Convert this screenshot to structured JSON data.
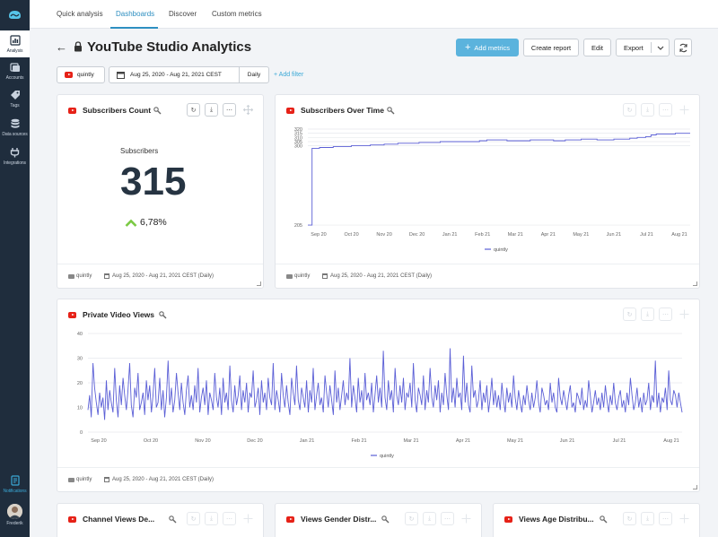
{
  "sidebar": {
    "items": [
      {
        "label": "Analysis",
        "icon": "chart-icon"
      },
      {
        "label": "Accounts",
        "icon": "accounts-icon"
      },
      {
        "label": "Tags",
        "icon": "tag-icon"
      },
      {
        "label": "Data sources",
        "icon": "database-icon"
      },
      {
        "label": "Integrations",
        "icon": "plug-icon"
      }
    ],
    "notifications": "Notifications",
    "user": "Frederik"
  },
  "nav": {
    "tabs": [
      "Quick analysis",
      "Dashboards",
      "Discover",
      "Custom metrics"
    ],
    "active": "Dashboards"
  },
  "header": {
    "title": "YouTube Studio Analytics",
    "add_metrics": "Add metrics",
    "create_report": "Create report",
    "edit": "Edit",
    "export": "Export"
  },
  "filters": {
    "profile": "quintly",
    "date_range": "Aug 25, 2020 - Aug 21, 2021 CEST",
    "interval": "Daily",
    "add_filter": "+ Add filter"
  },
  "cards": {
    "subscribers_count": {
      "title": "Subscribers Count",
      "label": "Subscribers",
      "value": "315",
      "delta": "6,78%",
      "footer_source": "quintly",
      "footer_range": "Aug 25, 2020 - Aug 21, 2021 CEST (Daily)"
    },
    "subscribers_over_time": {
      "title": "Subscribers Over Time",
      "footer_source": "quintly",
      "footer_range": "Aug 25, 2020 - Aug 21, 2021 CEST (Daily)"
    },
    "private_video_views": {
      "title": "Private Video Views",
      "footer_source": "quintly",
      "footer_range": "Aug 25, 2020 - Aug 21, 2021 CEST (Daily)"
    },
    "channel_views": {
      "title": "Channel Views De..."
    },
    "views_gender": {
      "title": "Views Gender Distr..."
    },
    "views_age": {
      "title": "Views Age Distribu..."
    }
  },
  "colors": {
    "accent": "#2e8fc1",
    "primary_button": "#5bb3dd",
    "series_line": "#5b5fd6",
    "youtube_red": "#e62117",
    "sidebar_bg": "#1f2d3d"
  },
  "chart_data": [
    {
      "type": "line",
      "ylim": [
        204,
        320
      ],
      "yticks": [
        205,
        300,
        305,
        310,
        315,
        320
      ],
      "ytick_labels": [
        "205",
        "300",
        "305",
        "310",
        "315",
        "320"
      ],
      "xtick_labels": [
        "Sep 20",
        "Oct 20",
        "Nov 20",
        "Dec 20",
        "Jan 21",
        "Feb 21",
        "Mar 21",
        "Apr 21",
        "May 21",
        "Jun 21",
        "Jul 21",
        "Aug 21"
      ],
      "series": [
        {
          "name": "quintly",
          "values": [
            {
              "x": "2020-08-25",
              "y": 205
            },
            {
              "x": "2020-08-29",
              "y": 297
            },
            {
              "x": "2020-09-05",
              "y": 298
            },
            {
              "x": "2020-09-15",
              "y": 298
            },
            {
              "x": "2020-09-18",
              "y": 299
            },
            {
              "x": "2020-09-25",
              "y": 299
            },
            {
              "x": "2020-10-02",
              "y": 299
            },
            {
              "x": "2020-10-05",
              "y": 300
            },
            {
              "x": "2020-10-20",
              "y": 300
            },
            {
              "x": "2020-10-23",
              "y": 301
            },
            {
              "x": "2020-11-02",
              "y": 301
            },
            {
              "x": "2020-11-05",
              "y": 302
            },
            {
              "x": "2020-11-18",
              "y": 303
            },
            {
              "x": "2020-12-01",
              "y": 303
            },
            {
              "x": "2020-12-08",
              "y": 304
            },
            {
              "x": "2020-12-28",
              "y": 305
            },
            {
              "x": "2021-01-28",
              "y": 305
            },
            {
              "x": "2021-02-03",
              "y": 306
            },
            {
              "x": "2021-02-10",
              "y": 307
            },
            {
              "x": "2021-02-25",
              "y": 307
            },
            {
              "x": "2021-03-01",
              "y": 306
            },
            {
              "x": "2021-03-20",
              "y": 306
            },
            {
              "x": "2021-03-23",
              "y": 307
            },
            {
              "x": "2021-04-10",
              "y": 307
            },
            {
              "x": "2021-04-14",
              "y": 306
            },
            {
              "x": "2021-04-22",
              "y": 306
            },
            {
              "x": "2021-04-25",
              "y": 307
            },
            {
              "x": "2021-05-05",
              "y": 307
            },
            {
              "x": "2021-05-10",
              "y": 308
            },
            {
              "x": "2021-05-25",
              "y": 307
            },
            {
              "x": "2021-06-05",
              "y": 307
            },
            {
              "x": "2021-06-10",
              "y": 308
            },
            {
              "x": "2021-06-20",
              "y": 308
            },
            {
              "x": "2021-06-25",
              "y": 309
            },
            {
              "x": "2021-07-02",
              "y": 310
            },
            {
              "x": "2021-07-10",
              "y": 311
            },
            {
              "x": "2021-07-15",
              "y": 313
            },
            {
              "x": "2021-07-20",
              "y": 314
            },
            {
              "x": "2021-08-02",
              "y": 314
            },
            {
              "x": "2021-08-07",
              "y": 315
            },
            {
              "x": "2021-08-21",
              "y": 315
            }
          ]
        }
      ]
    },
    {
      "type": "line",
      "ylim": [
        0,
        40
      ],
      "yticks": [
        0,
        10,
        20,
        30,
        40
      ],
      "xtick_labels": [
        "Sep 20",
        "Oct 20",
        "Nov 20",
        "Dec 20",
        "Jan 21",
        "Feb 21",
        "Mar 21",
        "Apr 21",
        "May 21",
        "Jun 21",
        "Jul 21",
        "Aug 21"
      ],
      "series": [
        {
          "name": "quintly",
          "values": [
            9,
            15,
            6,
            28,
            18,
            12,
            7,
            16,
            10,
            14,
            5,
            21,
            9,
            17,
            12,
            8,
            26,
            13,
            6,
            19,
            11,
            22,
            15,
            9,
            17,
            28,
            11,
            6,
            18,
            14,
            24,
            9,
            12,
            16,
            7,
            21,
            13,
            19,
            8,
            15,
            26,
            10,
            12,
            22,
            9,
            17,
            6,
            14,
            29,
            11,
            18,
            8,
            13,
            24,
            16,
            9,
            20,
            12,
            7,
            17,
            23,
            10,
            15,
            9,
            19,
            12,
            26,
            8,
            14,
            18,
            11,
            21,
            7,
            16,
            13,
            9,
            24,
            14,
            10,
            18,
            7,
            22,
            12,
            16,
            9,
            27,
            13,
            8,
            19,
            11,
            15,
            23,
            9,
            17,
            12,
            20,
            8,
            16,
            14,
            25,
            10,
            13,
            18,
            7,
            21,
            12,
            16,
            9,
            22,
            14,
            11,
            28,
            9,
            17,
            13,
            8,
            24,
            15,
            10,
            19,
            12,
            7,
            22,
            16,
            11,
            27,
            13,
            9,
            18,
            14,
            10,
            21,
            8,
            17,
            12,
            26,
            9,
            15,
            20,
            11,
            14,
            8,
            23,
            16,
            10,
            19,
            13,
            7,
            25,
            12,
            18,
            9,
            15,
            21,
            11,
            16,
            13,
            30,
            10,
            19,
            14,
            8,
            22,
            12,
            17,
            9,
            24,
            13,
            16,
            11,
            20,
            8,
            15,
            23,
            12,
            18,
            10,
            33,
            14,
            9,
            21,
            13,
            17,
            8,
            26,
            15,
            11,
            19,
            12,
            22,
            9,
            16,
            14,
            20,
            10,
            28,
            13,
            8,
            18,
            15,
            11,
            23,
            9,
            17,
            12,
            26,
            14,
            10,
            19,
            13,
            21,
            8,
            16,
            11,
            24,
            15,
            9,
            34,
            12,
            18,
            10,
            22,
            14,
            16,
            9,
            31,
            12,
            20,
            11,
            8,
            27,
            14,
            17,
            10,
            13,
            21,
            9,
            16,
            12,
            19,
            8,
            14,
            22,
            11,
            17,
            10,
            15,
            9,
            20,
            13,
            8,
            18,
            12,
            16,
            10,
            23,
            14,
            9,
            17,
            12,
            8,
            15,
            11,
            19,
            13,
            9,
            16,
            10,
            14,
            21,
            12,
            8,
            18,
            15,
            11,
            13,
            9,
            20,
            12,
            16,
            10,
            8,
            22,
            14,
            11,
            17,
            13,
            9,
            15,
            19,
            10,
            12,
            8,
            16,
            14,
            11,
            18,
            9,
            13,
            10,
            21,
            15,
            8,
            12,
            17,
            11,
            14,
            9,
            16,
            10,
            19,
            13,
            8,
            15,
            11,
            20,
            12,
            9,
            14,
            17,
            10,
            13,
            8,
            16,
            11,
            22,
            15,
            9,
            12,
            18,
            10,
            14,
            8,
            16,
            11,
            13,
            20,
            9,
            15,
            12,
            29,
            10,
            16,
            8,
            14,
            12,
            18,
            9,
            25,
            13,
            11,
            17,
            15,
            10,
            16,
            12,
            8
          ]
        }
      ]
    }
  ]
}
